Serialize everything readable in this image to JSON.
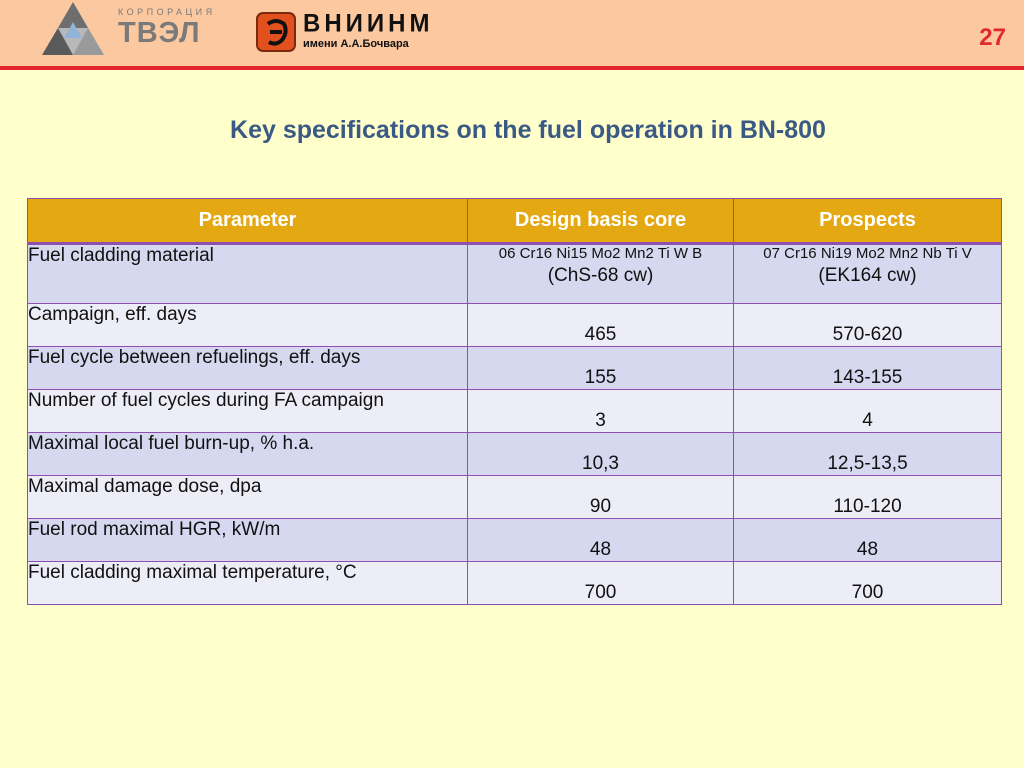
{
  "header": {
    "tvel_korporaciya": "КОРПОРАЦИЯ",
    "tvel_name": "ТВЭЛ",
    "vniinm_name": "ВНИИНМ",
    "vniinm_sub": "имени А.А.Бочвара",
    "page_number": "27",
    "colors": {
      "band": "#FBC8A0",
      "line": "#E2282C"
    }
  },
  "title": "Key specifications on the fuel operation in BN-800",
  "table": {
    "headers": [
      "Parameter",
      "Design basis core",
      "Prospects"
    ],
    "rows": [
      {
        "parameter": "Fuel cladding material",
        "design_main": "06 Cr16 Ni15 Mo2 Mn2 Ti W B",
        "design_sub": "(ChS-68 cw)",
        "prospects_main": "07 Cr16 Ni19 Mo2 Mn2 Nb Ti V",
        "prospects_sub": "(EK164 cw)"
      },
      {
        "parameter": "Campaign, eff. days",
        "design": "465",
        "prospects": "570-620"
      },
      {
        "parameter": "Fuel cycle between refuelings, eff. days",
        "design": "155",
        "prospects": "143-155"
      },
      {
        "parameter": "Number of fuel cycles during FA campaign",
        "design": "3",
        "prospects": "4"
      },
      {
        "parameter": "Maximal local fuel burn-up, % h.a.",
        "design": "10,3",
        "prospects": "12,5-13,5"
      },
      {
        "parameter": "Maximal damage dose, dpa",
        "design": "90",
        "prospects": "110-120"
      },
      {
        "parameter": "Fuel rod maximal HGR, kW/m",
        "design": "48",
        "prospects": "48"
      },
      {
        "parameter": "Fuel cladding maximal temperature, °C",
        "design": "700",
        "prospects": "700"
      }
    ],
    "colors": {
      "header": "#E4A812",
      "row_odd": "#D6D8F0",
      "row_even": "#EDEDF8",
      "border": "#8E4FB0"
    }
  }
}
